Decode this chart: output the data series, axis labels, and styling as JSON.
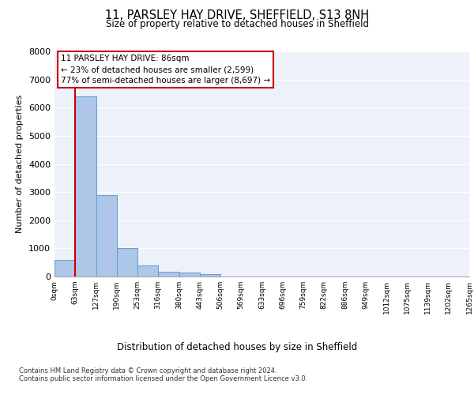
{
  "title": "11, PARSLEY HAY DRIVE, SHEFFIELD, S13 8NH",
  "subtitle": "Size of property relative to detached houses in Sheffield",
  "xlabel": "Distribution of detached houses by size in Sheffield",
  "ylabel": "Number of detached properties",
  "bin_labels": [
    "0sqm",
    "63sqm",
    "127sqm",
    "190sqm",
    "253sqm",
    "316sqm",
    "380sqm",
    "443sqm",
    "506sqm",
    "569sqm",
    "633sqm",
    "696sqm",
    "759sqm",
    "822sqm",
    "886sqm",
    "949sqm",
    "1012sqm",
    "1075sqm",
    "1139sqm",
    "1202sqm",
    "1265sqm"
  ],
  "bar_values": [
    600,
    6400,
    2900,
    1000,
    380,
    180,
    130,
    90,
    0,
    0,
    0,
    0,
    0,
    0,
    0,
    0,
    0,
    0,
    0,
    0
  ],
  "bar_color": "#aec6e8",
  "bar_edge_color": "#5a9fd4",
  "property_line_color": "#cc0000",
  "annotation_text": "11 PARSLEY HAY DRIVE: 86sqm\n← 23% of detached houses are smaller (2,599)\n77% of semi-detached houses are larger (8,697) →",
  "annotation_box_color": "#cc0000",
  "ylim": [
    0,
    8000
  ],
  "yticks": [
    0,
    1000,
    2000,
    3000,
    4000,
    5000,
    6000,
    7000,
    8000
  ],
  "background_color": "#edf1f9",
  "footer_line1": "Contains HM Land Registry data © Crown copyright and database right 2024.",
  "footer_line2": "Contains public sector information licensed under the Open Government Licence v3.0."
}
